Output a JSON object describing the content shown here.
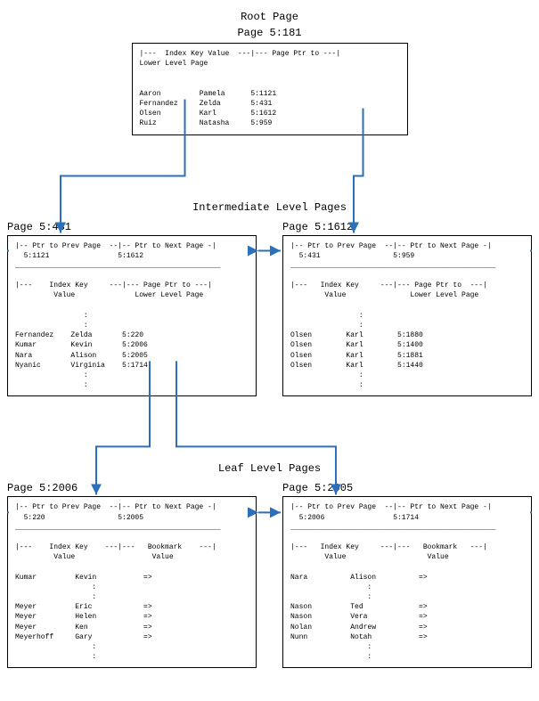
{
  "titles": {
    "root": "Root Page",
    "inter": "Intermediate Level Pages",
    "leaf": "Leaf Level Pages"
  },
  "root": {
    "label": "Page 5:181",
    "header": "|---  Index Key Value  ---|--- Page Ptr to ---|\nLower Level Page",
    "rows": [
      [
        "Aaron",
        "Pamela",
        "5:1121"
      ],
      [
        "Fernandez",
        "Zelda",
        "5:431"
      ],
      [
        "Olsen",
        "Karl",
        "5:1612"
      ],
      [
        "Ruiz",
        "Natasha",
        "5:959"
      ]
    ]
  },
  "inter_left": {
    "label": "Page 5:431",
    "nav_header": "|-- Ptr to Prev Page  --|-- Ptr to Next Page -|",
    "prev": "5:1121",
    "next": "5:1612",
    "body_header": "|---    Index Key     ---|--- Page Ptr to ---|\n         Value              Lower Level Page",
    "rows": [
      [
        "Fernandez",
        "Zelda",
        "5:220"
      ],
      [
        "Kumar",
        "Kevin",
        "5:2006"
      ],
      [
        "Nara",
        "Alison",
        "5:2005"
      ],
      [
        "Nyanic",
        "Virginia",
        "5:1714"
      ]
    ]
  },
  "inter_right": {
    "label": "Page 5:1612",
    "nav_header": "|-- Ptr to Prev Page  --|-- Ptr to Next Page -|",
    "prev": "5:431",
    "next": "5:959",
    "body_header": "|---   Index Key     ---|--- Page Ptr to  ---|\n        Value               Lower Level Page",
    "rows": [
      [
        "Olsen",
        "Karl",
        "5:1880"
      ],
      [
        "Olsen",
        "Karl",
        "5:1400"
      ],
      [
        "Olsen",
        "Karl",
        "5:1881"
      ],
      [
        "Olsen",
        "Karl",
        "5:1440"
      ]
    ]
  },
  "leaf_left": {
    "label": "Page 5:2006",
    "nav_header": "|-- Ptr to Prev Page  --|-- Ptr to Next Page -|",
    "prev": "5:220",
    "next": "5:2005",
    "body_header": "|---    Index Key    ---|---   Bookmark    ---|\n         Value                  Value",
    "first": [
      "Kumar",
      "Kevin",
      "=>"
    ],
    "rows": [
      [
        "Meyer",
        "Eric",
        "=>"
      ],
      [
        "Meyer",
        "Helen",
        "=>"
      ],
      [
        "Meyer",
        "Ken",
        "=>"
      ],
      [
        "Meyerhoff",
        "Gary",
        "=>"
      ]
    ]
  },
  "leaf_right": {
    "label": "Page 5:2005",
    "nav_header": "|-- Ptr to Prev Page  --|-- Ptr to Next Page -|",
    "prev": "5:2006",
    "next": "5:1714",
    "body_header": "|---   Index Key     ---|---   Bookmark   ---|\n        Value                   Value",
    "first": [
      "Nara",
      "Alison",
      "=>"
    ],
    "rows": [
      [
        "Nason",
        "Ted",
        "=>"
      ],
      [
        "Nason",
        "Vera",
        "=>"
      ],
      [
        "Nolan",
        "Andrew",
        "=>"
      ],
      [
        "Nunn",
        "Notah",
        "=>"
      ]
    ]
  },
  "arrow_color": "#2c6fbb"
}
